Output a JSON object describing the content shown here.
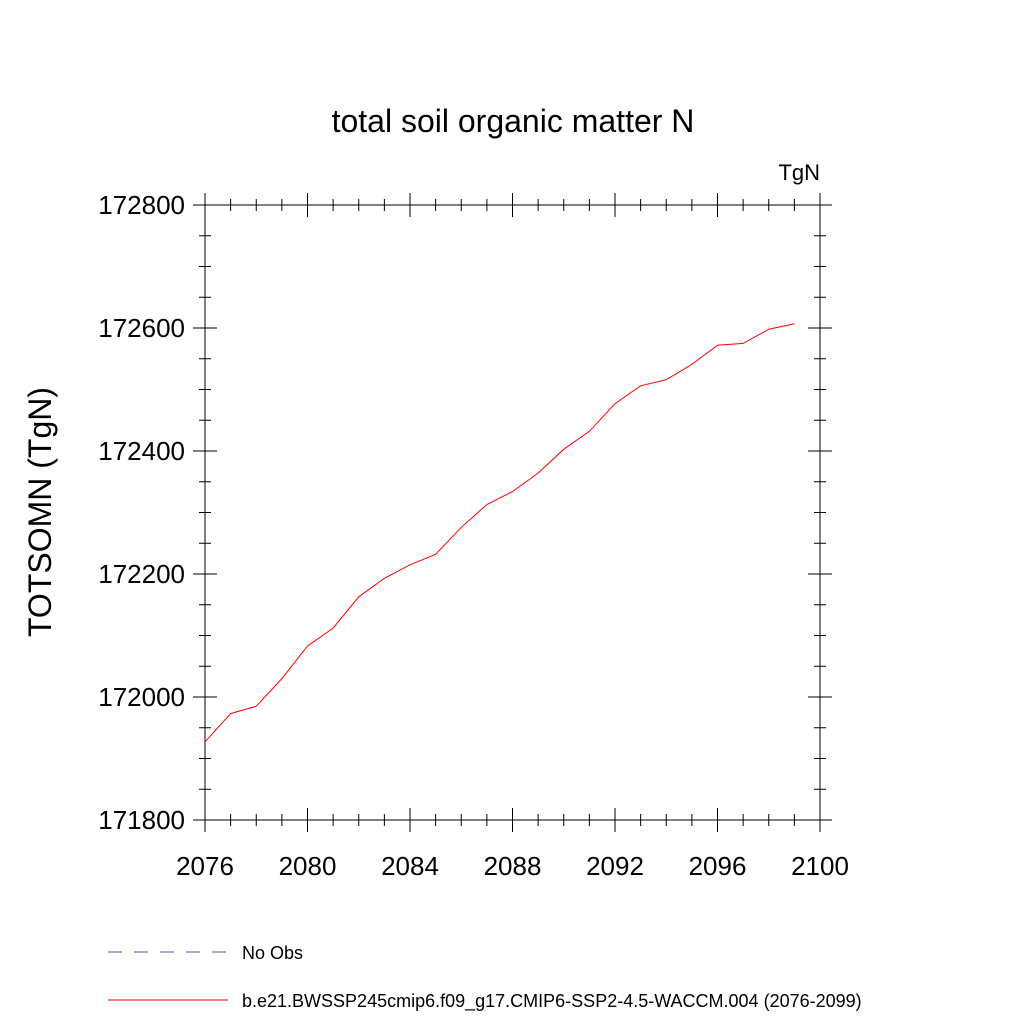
{
  "chart_data": {
    "type": "line",
    "title": "total soil organic matter N",
    "units_label": "TgN",
    "ylabel": "TOTSOMN  (TgN)",
    "xlabel": "",
    "xlim": [
      2076,
      2100
    ],
    "ylim": [
      171800,
      172800
    ],
    "x_ticks": [
      2076,
      2080,
      2084,
      2088,
      2092,
      2096,
      2100
    ],
    "y_ticks": [
      171800,
      172000,
      172200,
      172400,
      172600,
      172800
    ],
    "x_minor_step": 1,
    "y_minor_step": 50,
    "grid": false,
    "legend_position": "bottom",
    "series": [
      {
        "name": "No Obs",
        "color": "#5b4fa8",
        "dash": "dashed",
        "x": [],
        "values": []
      },
      {
        "name": "b.e21.BWSSP245cmip6.f09_g17.CMIP6-SSP2-4.5-WACCM.004 (2076-2099)",
        "color": "#ff0000",
        "dash": "solid",
        "x": [
          2076,
          2077,
          2078,
          2079,
          2080,
          2081,
          2082,
          2083,
          2084,
          2085,
          2086,
          2087,
          2088,
          2089,
          2090,
          2091,
          2092,
          2093,
          2094,
          2095,
          2096,
          2097,
          2098,
          2099
        ],
        "values": [
          171927,
          171973,
          171985,
          172030,
          172083,
          172112,
          172163,
          172193,
          172215,
          172232,
          172276,
          172313,
          172334,
          172364,
          172403,
          172432,
          172477,
          172506,
          172516,
          172541,
          172572,
          172575,
          172598,
          172607
        ]
      }
    ]
  }
}
